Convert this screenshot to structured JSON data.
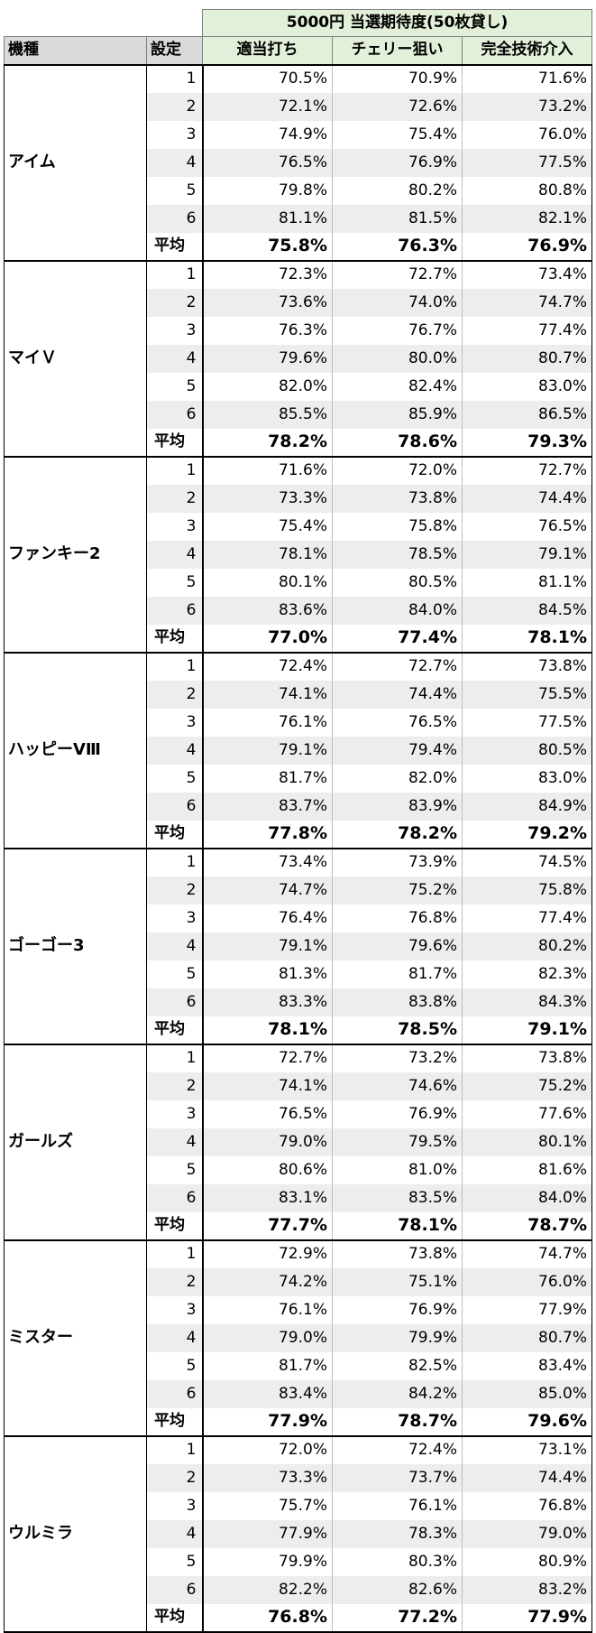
{
  "title": "5000円 当選期待度(50枚貸し)",
  "columns": {
    "model": "機種",
    "setting": "設定",
    "strategies": [
      "適当打ち",
      "チェリー狙い",
      "完全技術介入"
    ]
  },
  "average_label": "平均",
  "groups": [
    {
      "model": "アイム",
      "rows": [
        {
          "setting": "1",
          "values": [
            "70.5%",
            "70.9%",
            "71.6%"
          ]
        },
        {
          "setting": "2",
          "values": [
            "72.1%",
            "72.6%",
            "73.2%"
          ]
        },
        {
          "setting": "3",
          "values": [
            "74.9%",
            "75.4%",
            "76.0%"
          ]
        },
        {
          "setting": "4",
          "values": [
            "76.5%",
            "76.9%",
            "77.5%"
          ]
        },
        {
          "setting": "5",
          "values": [
            "79.8%",
            "80.2%",
            "80.8%"
          ]
        },
        {
          "setting": "6",
          "values": [
            "81.1%",
            "81.5%",
            "82.1%"
          ]
        }
      ],
      "average": [
        "75.8%",
        "76.3%",
        "76.9%"
      ]
    },
    {
      "model": "マイＶ",
      "rows": [
        {
          "setting": "1",
          "values": [
            "72.3%",
            "72.7%",
            "73.4%"
          ]
        },
        {
          "setting": "2",
          "values": [
            "73.6%",
            "74.0%",
            "74.7%"
          ]
        },
        {
          "setting": "3",
          "values": [
            "76.3%",
            "76.7%",
            "77.4%"
          ]
        },
        {
          "setting": "4",
          "values": [
            "79.6%",
            "80.0%",
            "80.7%"
          ]
        },
        {
          "setting": "5",
          "values": [
            "82.0%",
            "82.4%",
            "83.0%"
          ]
        },
        {
          "setting": "6",
          "values": [
            "85.5%",
            "85.9%",
            "86.5%"
          ]
        }
      ],
      "average": [
        "78.2%",
        "78.6%",
        "79.3%"
      ]
    },
    {
      "model": "ファンキー2",
      "rows": [
        {
          "setting": "1",
          "values": [
            "71.6%",
            "72.0%",
            "72.7%"
          ]
        },
        {
          "setting": "2",
          "values": [
            "73.3%",
            "73.8%",
            "74.4%"
          ]
        },
        {
          "setting": "3",
          "values": [
            "75.4%",
            "75.8%",
            "76.5%"
          ]
        },
        {
          "setting": "4",
          "values": [
            "78.1%",
            "78.5%",
            "79.1%"
          ]
        },
        {
          "setting": "5",
          "values": [
            "80.1%",
            "80.5%",
            "81.1%"
          ]
        },
        {
          "setting": "6",
          "values": [
            "83.6%",
            "84.0%",
            "84.5%"
          ]
        }
      ],
      "average": [
        "77.0%",
        "77.4%",
        "78.1%"
      ]
    },
    {
      "model": "ハッピーVⅢ",
      "rows": [
        {
          "setting": "1",
          "values": [
            "72.4%",
            "72.7%",
            "73.8%"
          ]
        },
        {
          "setting": "2",
          "values": [
            "74.1%",
            "74.4%",
            "75.5%"
          ]
        },
        {
          "setting": "3",
          "values": [
            "76.1%",
            "76.5%",
            "77.5%"
          ]
        },
        {
          "setting": "4",
          "values": [
            "79.1%",
            "79.4%",
            "80.5%"
          ]
        },
        {
          "setting": "5",
          "values": [
            "81.7%",
            "82.0%",
            "83.0%"
          ]
        },
        {
          "setting": "6",
          "values": [
            "83.7%",
            "83.9%",
            "84.9%"
          ]
        }
      ],
      "average": [
        "77.8%",
        "78.2%",
        "79.2%"
      ]
    },
    {
      "model": "ゴーゴー3",
      "rows": [
        {
          "setting": "1",
          "values": [
            "73.4%",
            "73.9%",
            "74.5%"
          ]
        },
        {
          "setting": "2",
          "values": [
            "74.7%",
            "75.2%",
            "75.8%"
          ]
        },
        {
          "setting": "3",
          "values": [
            "76.4%",
            "76.8%",
            "77.4%"
          ]
        },
        {
          "setting": "4",
          "values": [
            "79.1%",
            "79.6%",
            "80.2%"
          ]
        },
        {
          "setting": "5",
          "values": [
            "81.3%",
            "81.7%",
            "82.3%"
          ]
        },
        {
          "setting": "6",
          "values": [
            "83.3%",
            "83.8%",
            "84.3%"
          ]
        }
      ],
      "average": [
        "78.1%",
        "78.5%",
        "79.1%"
      ]
    },
    {
      "model": "ガールズ",
      "rows": [
        {
          "setting": "1",
          "values": [
            "72.7%",
            "73.2%",
            "73.8%"
          ]
        },
        {
          "setting": "2",
          "values": [
            "74.1%",
            "74.6%",
            "75.2%"
          ]
        },
        {
          "setting": "3",
          "values": [
            "76.5%",
            "76.9%",
            "77.6%"
          ]
        },
        {
          "setting": "4",
          "values": [
            "79.0%",
            "79.5%",
            "80.1%"
          ]
        },
        {
          "setting": "5",
          "values": [
            "80.6%",
            "81.0%",
            "81.6%"
          ]
        },
        {
          "setting": "6",
          "values": [
            "83.1%",
            "83.5%",
            "84.0%"
          ]
        }
      ],
      "average": [
        "77.7%",
        "78.1%",
        "78.7%"
      ]
    },
    {
      "model": "ミスター",
      "rows": [
        {
          "setting": "1",
          "values": [
            "72.9%",
            "73.8%",
            "74.7%"
          ]
        },
        {
          "setting": "2",
          "values": [
            "74.2%",
            "75.1%",
            "76.0%"
          ]
        },
        {
          "setting": "3",
          "values": [
            "76.1%",
            "76.9%",
            "77.9%"
          ]
        },
        {
          "setting": "4",
          "values": [
            "79.0%",
            "79.9%",
            "80.7%"
          ]
        },
        {
          "setting": "5",
          "values": [
            "81.7%",
            "82.5%",
            "83.4%"
          ]
        },
        {
          "setting": "6",
          "values": [
            "83.4%",
            "84.2%",
            "85.0%"
          ]
        }
      ],
      "average": [
        "77.9%",
        "78.7%",
        "79.6%"
      ]
    },
    {
      "model": "ウルミラ",
      "rows": [
        {
          "setting": "1",
          "values": [
            "72.0%",
            "72.4%",
            "73.1%"
          ]
        },
        {
          "setting": "2",
          "values": [
            "73.3%",
            "73.7%",
            "74.4%"
          ]
        },
        {
          "setting": "3",
          "values": [
            "75.7%",
            "76.1%",
            "76.8%"
          ]
        },
        {
          "setting": "4",
          "values": [
            "77.9%",
            "78.3%",
            "79.0%"
          ]
        },
        {
          "setting": "5",
          "values": [
            "79.9%",
            "80.3%",
            "80.9%"
          ]
        },
        {
          "setting": "6",
          "values": [
            "82.2%",
            "82.6%",
            "83.2%"
          ]
        }
      ],
      "average": [
        "76.8%",
        "77.2%",
        "77.9%"
      ]
    }
  ]
}
